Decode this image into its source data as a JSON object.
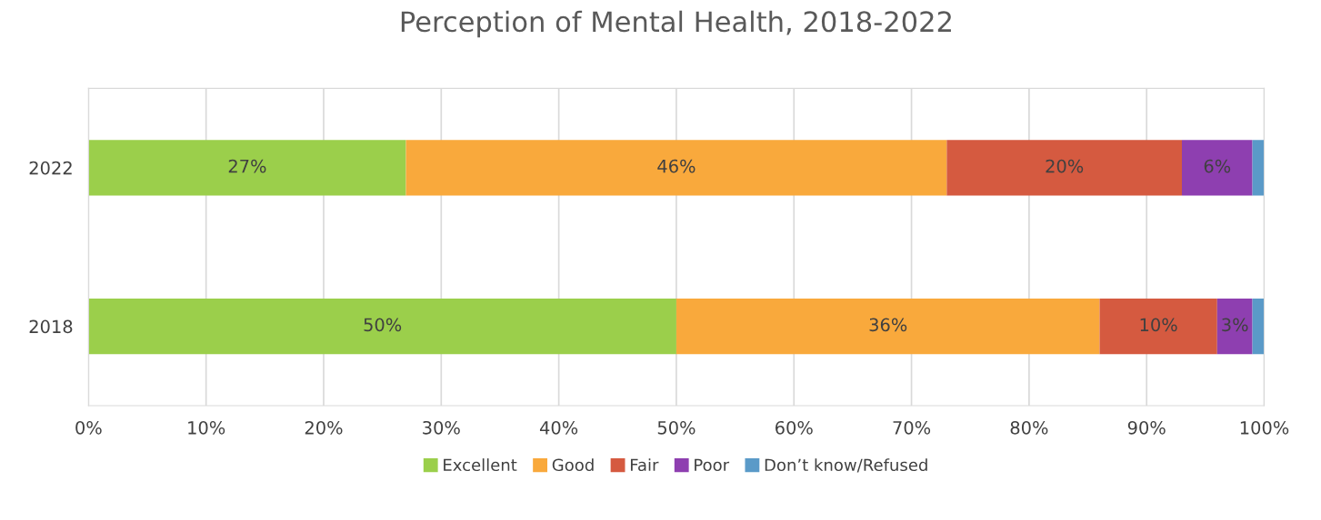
{
  "chart_data": {
    "type": "bar",
    "orientation": "horizontal",
    "stacked": true,
    "title": "Perception of Mental Health, 2018-2022",
    "categories": [
      "2022",
      "2018"
    ],
    "series": [
      {
        "name": "Excellent",
        "color": "#9bcf4b",
        "values": [
          27,
          50
        ],
        "value_labels": [
          "27%",
          "50%"
        ]
      },
      {
        "name": "Good",
        "color": "#f9a93c",
        "values": [
          46,
          36
        ],
        "value_labels": [
          "46%",
          "36%"
        ]
      },
      {
        "name": "Fair",
        "color": "#d55a40",
        "values": [
          20,
          10
        ],
        "value_labels": [
          "20%",
          "10%"
        ]
      },
      {
        "name": "Poor",
        "color": "#8e3fb0",
        "values": [
          6,
          3
        ],
        "value_labels": [
          "6%",
          "3%"
        ]
      },
      {
        "name": "Don’t know/Refused",
        "color": "#5a9ac8",
        "values": [
          1,
          1
        ]
      }
    ],
    "xlim": [
      0,
      100
    ],
    "xticks": [
      {
        "value": 0,
        "label": "0%"
      },
      {
        "value": 10,
        "label": "10%"
      },
      {
        "value": 20,
        "label": "20%"
      },
      {
        "value": 30,
        "label": "30%"
      },
      {
        "value": 40,
        "label": "40%"
      },
      {
        "value": 50,
        "label": "50%"
      },
      {
        "value": 60,
        "label": "60%"
      },
      {
        "value": 70,
        "label": "70%"
      },
      {
        "value": 80,
        "label": "80%"
      },
      {
        "value": 90,
        "label": "90%"
      },
      {
        "value": 100,
        "label": "100%"
      }
    ],
    "grid": "x",
    "legend": "bottom"
  }
}
